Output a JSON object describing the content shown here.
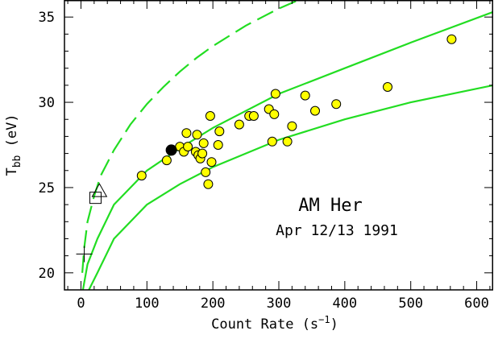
{
  "chart_data": {
    "type": "scatter",
    "title": "",
    "xlabel": "Count Rate (s",
    "xlabel_sup": "−1",
    "xlabel_tail": ")",
    "ylabel": "T",
    "ylabel_sub": "bb",
    "ylabel_tail": " (eV)",
    "xlim": [
      -25,
      625
    ],
    "ylim": [
      19,
      36
    ],
    "x_ticks": [
      0,
      100,
      200,
      300,
      400,
      500,
      600
    ],
    "y_ticks": [
      20,
      25,
      30,
      35
    ],
    "grid": false,
    "annotations": [
      "AM Her",
      "Apr 12/13 1991"
    ],
    "colors": {
      "curve": "#22dd22",
      "marker_fill": "#ffff00",
      "marker_edge": "#000000",
      "highlight": "#000000"
    },
    "curves": [
      {
        "style": "dashed",
        "x": [
          2,
          5,
          10,
          20,
          30,
          50,
          75,
          100,
          125,
          150,
          175,
          200,
          225,
          250,
          275,
          300,
          330
        ],
        "y": [
          20.0,
          21.5,
          23.0,
          24.5,
          25.7,
          27.2,
          28.7,
          29.9,
          30.9,
          31.8,
          32.6,
          33.3,
          33.9,
          34.5,
          35.0,
          35.5,
          36.0
        ]
      },
      {
        "style": "solid",
        "x": [
          3,
          10,
          25,
          50,
          100,
          150,
          200,
          300,
          400,
          500,
          625
        ],
        "y": [
          19.0,
          20.5,
          22.0,
          24.0,
          26.0,
          27.3,
          28.5,
          30.5,
          32.0,
          33.5,
          35.3
        ]
      },
      {
        "style": "solid",
        "x": [
          12,
          25,
          50,
          100,
          150,
          200,
          300,
          400,
          500,
          625
        ],
        "y": [
          19.0,
          20.0,
          22.0,
          24.0,
          25.2,
          26.2,
          27.8,
          29.0,
          30.0,
          31.0
        ]
      }
    ],
    "points": [
      {
        "x": 92,
        "y": 25.7
      },
      {
        "x": 130,
        "y": 26.6
      },
      {
        "x": 150,
        "y": 27.4
      },
      {
        "x": 156,
        "y": 27.1
      },
      {
        "x": 160,
        "y": 28.2
      },
      {
        "x": 162,
        "y": 27.4
      },
      {
        "x": 174,
        "y": 27.1
      },
      {
        "x": 176,
        "y": 28.1
      },
      {
        "x": 178,
        "y": 26.9
      },
      {
        "x": 181,
        "y": 26.7
      },
      {
        "x": 184,
        "y": 27.0
      },
      {
        "x": 186,
        "y": 27.6
      },
      {
        "x": 189,
        "y": 25.9
      },
      {
        "x": 193,
        "y": 25.2
      },
      {
        "x": 196,
        "y": 29.2
      },
      {
        "x": 198,
        "y": 26.5
      },
      {
        "x": 208,
        "y": 27.5
      },
      {
        "x": 210,
        "y": 28.3
      },
      {
        "x": 240,
        "y": 28.7
      },
      {
        "x": 255,
        "y": 29.2
      },
      {
        "x": 262,
        "y": 29.2
      },
      {
        "x": 285,
        "y": 29.6
      },
      {
        "x": 290,
        "y": 27.7
      },
      {
        "x": 293,
        "y": 29.3
      },
      {
        "x": 295,
        "y": 30.5
      },
      {
        "x": 313,
        "y": 27.7
      },
      {
        "x": 320,
        "y": 28.6
      },
      {
        "x": 340,
        "y": 30.4
      },
      {
        "x": 355,
        "y": 29.5
      },
      {
        "x": 387,
        "y": 29.9
      },
      {
        "x": 465,
        "y": 30.9
      },
      {
        "x": 562,
        "y": 33.7
      }
    ],
    "highlight_point": {
      "x": 137,
      "y": 27.2
    },
    "extra_markers": [
      {
        "shape": "triangle",
        "x": 28,
        "y": 24.8
      },
      {
        "shape": "square",
        "x": 22,
        "y": 24.4
      },
      {
        "shape": "cross",
        "x": 5,
        "y": 21.1
      }
    ]
  }
}
